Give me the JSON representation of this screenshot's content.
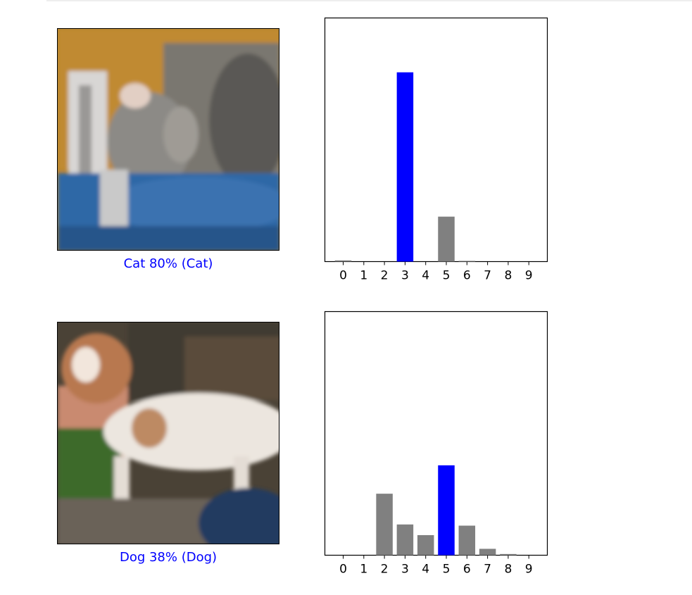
{
  "panels": [
    {
      "caption": "Cat 80% (Cat)",
      "image": "blurry-cat-photo"
    },
    {
      "caption": "Dog 38% (Dog)",
      "image": "blurry-dog-photo"
    }
  ],
  "chart_data": [
    {
      "type": "bar",
      "categories": [
        "0",
        "1",
        "2",
        "3",
        "4",
        "5",
        "6",
        "7",
        "8",
        "9"
      ],
      "values": [
        0.005,
        0.0,
        0.0,
        0.8,
        0.0,
        0.19,
        0.003,
        0.0,
        0.0,
        0.0
      ],
      "bar_colors": [
        "#808080",
        "#808080",
        "#808080",
        "#0000ff",
        "#808080",
        "#808080",
        "#808080",
        "#808080",
        "#808080",
        "#808080"
      ],
      "ylim": [
        0,
        1
      ],
      "yticks": "hidden",
      "title": "",
      "xlabel": "",
      "ylabel": ""
    },
    {
      "type": "bar",
      "categories": [
        "0",
        "1",
        "2",
        "3",
        "4",
        "5",
        "6",
        "7",
        "8",
        "9"
      ],
      "values": [
        0.0,
        0.0,
        0.26,
        0.13,
        0.085,
        0.38,
        0.125,
        0.027,
        0.005,
        0.0
      ],
      "bar_colors": [
        "#808080",
        "#808080",
        "#808080",
        "#808080",
        "#808080",
        "#0000ff",
        "#808080",
        "#808080",
        "#808080",
        "#808080"
      ],
      "ylim": [
        0,
        1
      ],
      "yticks": "hidden",
      "title": "",
      "xlabel": "",
      "ylabel": ""
    }
  ]
}
